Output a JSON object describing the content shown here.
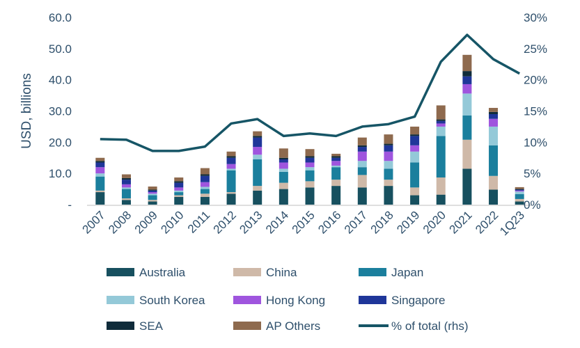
{
  "chart_data": {
    "type": "bar",
    "stacked": true,
    "categories": [
      "2007",
      "2008",
      "2009",
      "2010",
      "2011",
      "2012",
      "2013",
      "2014",
      "2015",
      "2016",
      "2017",
      "2018",
      "2019",
      "2020",
      "2021",
      "2022",
      "1Q23"
    ],
    "ylabel": "USD, billions",
    "ylim": [
      0,
      60
    ],
    "yticks": [
      "-",
      "10.0",
      "20.0",
      "30.0",
      "40.0",
      "50.0",
      "60.0"
    ],
    "y2lim": [
      0,
      30
    ],
    "y2ticks": [
      "0%",
      "5%",
      "10%",
      "15%",
      "20%",
      "25%",
      "30%"
    ],
    "grid": false,
    "legend_position": "bottom",
    "series": [
      {
        "name": "Australia",
        "color": "#17505f",
        "values": [
          4.0,
          1.5,
          1.0,
          2.5,
          2.5,
          3.5,
          4.5,
          5.0,
          5.5,
          6.0,
          5.5,
          6.0,
          3.0,
          3.2,
          11.5,
          4.8,
          1.0
        ]
      },
      {
        "name": "China",
        "color": "#cfb9a8",
        "values": [
          0.5,
          0.5,
          0.5,
          0.5,
          1.0,
          0.5,
          1.5,
          2.0,
          2.0,
          2.0,
          4.0,
          2.0,
          2.5,
          5.5,
          9.3,
          4.4,
          0.8
        ]
      },
      {
        "name": "Japan",
        "color": "#1b7f9d",
        "values": [
          4.5,
          3.0,
          1.5,
          1.0,
          1.5,
          7.0,
          8.5,
          3.5,
          3.5,
          4.0,
          2.5,
          3.5,
          8.0,
          13.3,
          7.8,
          9.8,
          1.6
        ]
      },
      {
        "name": "South Korea",
        "color": "#94c9d8",
        "values": [
          1.0,
          0.5,
          0.5,
          0.5,
          0.7,
          0.5,
          1.5,
          1.0,
          1.0,
          0.5,
          2.0,
          2.5,
          3.5,
          3.0,
          7.0,
          6.0,
          0.8
        ]
      },
      {
        "name": "Hong Kong",
        "color": "#9f55de",
        "values": [
          2.0,
          1.0,
          0.5,
          1.0,
          1.5,
          1.5,
          2.5,
          2.0,
          1.5,
          1.5,
          3.0,
          3.0,
          2.0,
          1.0,
          3.0,
          2.5,
          0.3
        ]
      },
      {
        "name": "Singapore",
        "color": "#1f3699",
        "values": [
          1.5,
          1.5,
          0.5,
          1.5,
          2.0,
          2.0,
          3.0,
          1.0,
          1.5,
          1.0,
          1.5,
          2.0,
          3.0,
          0.8,
          2.5,
          1.5,
          0.3
        ]
      },
      {
        "name": "SEA",
        "color": "#0f2b3a",
        "values": [
          0.5,
          0.5,
          0.3,
          0.5,
          0.5,
          0.5,
          0.5,
          0.5,
          0.5,
          0.5,
          0.5,
          0.5,
          0.5,
          0.5,
          1.7,
          0.7,
          0.2
        ]
      },
      {
        "name": "AP Others",
        "color": "#8e6a4e",
        "values": [
          1.0,
          1.2,
          1.0,
          1.2,
          2.0,
          1.5,
          1.5,
          3.0,
          2.3,
          0.8,
          2.5,
          3.0,
          2.5,
          4.5,
          5.2,
          1.3,
          0.6
        ]
      }
    ],
    "line": {
      "name": "% of total (rhs)",
      "color": "#165566",
      "axis": "right",
      "values": [
        10.5,
        10.4,
        8.6,
        8.6,
        9.3,
        13.0,
        13.7,
        11.0,
        11.4,
        11.0,
        12.5,
        12.9,
        14.1,
        22.9,
        27.2,
        23.3,
        21.0
      ]
    }
  }
}
